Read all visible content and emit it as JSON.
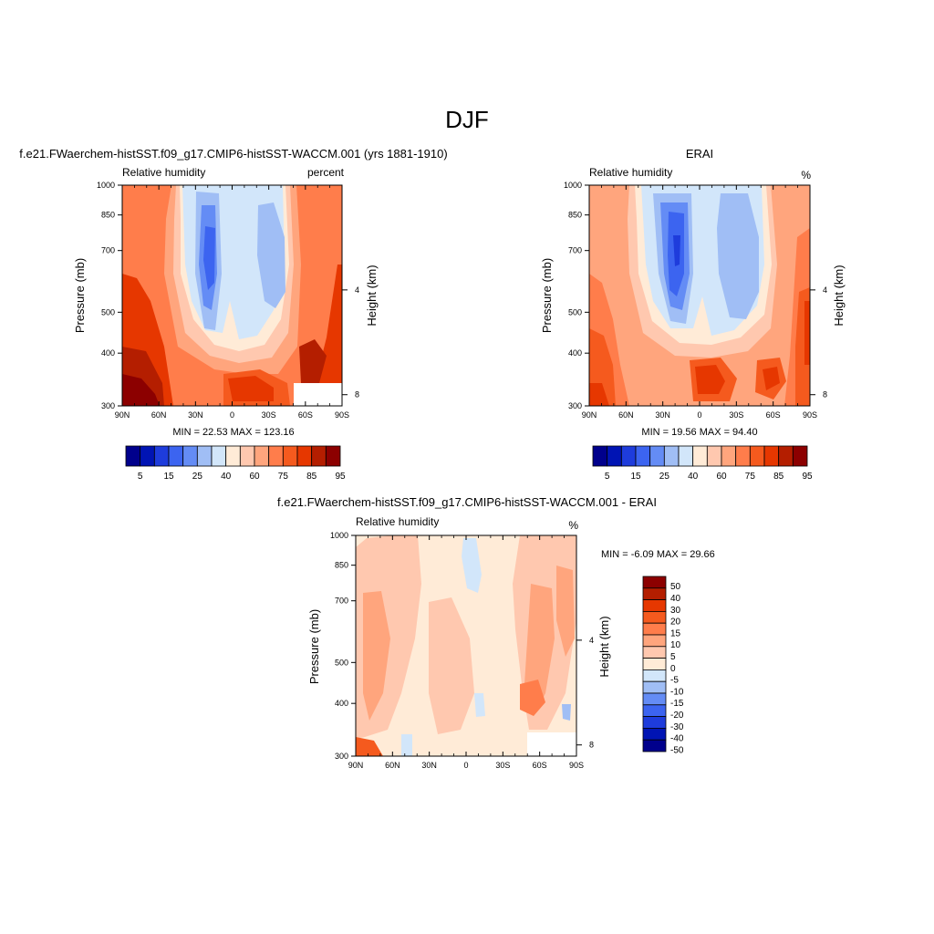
{
  "page_title": "DJF",
  "colors": {
    "model": [
      "#00008c",
      "#0014b4",
      "#1e3cdc",
      "#3c64f0",
      "#648cf5",
      "#a0bef5",
      "#d2e6fa",
      "#ffebd7",
      "#ffc8af",
      "#ffa57d",
      "#ff7d4b",
      "#f55a1e",
      "#e63700",
      "#b41e00",
      "#8c0000"
    ],
    "diff": [
      "#00008c",
      "#0014b4",
      "#1e3cdc",
      "#3c64f0",
      "#648cf5",
      "#a0bef5",
      "#d2e6fa",
      "#ffebd7",
      "#ffc8af",
      "#ffa57d",
      "#ff7d4b",
      "#f55a1e",
      "#e63700",
      "#b41e00",
      "#8c0000"
    ]
  },
  "chart_data": [
    {
      "type": "heatmap",
      "title": "f.e21.FWaerchem-histSST.f09_g17.CMIP6-histSST-WACCM.001 (yrs 1881-1910)",
      "left_label": "Relative humidity",
      "right_label": "percent",
      "ylabel": "Pressure (mb)",
      "ylabel_right": "Height (km)",
      "xticks": [
        "90N",
        "60N",
        "30N",
        "0",
        "30S",
        "60S",
        "90S"
      ],
      "yticks": [
        "300",
        "400",
        "500",
        "700",
        "850",
        "1000"
      ],
      "yticks_right": [
        "8",
        "4"
      ],
      "ylim": [
        1000,
        300
      ],
      "stats": "MIN =  22.53  MAX = 123.16",
      "colorbar_labels": [
        "5",
        "15",
        "25",
        "40",
        "60",
        "75",
        "85",
        "95"
      ]
    },
    {
      "type": "heatmap",
      "title": "ERAI",
      "left_label": "Relative humidity",
      "right_label": "%",
      "ylabel": "Pressure (mb)",
      "ylabel_right": "Height (km)",
      "xticks": [
        "90N",
        "60N",
        "30N",
        "0",
        "30S",
        "60S",
        "90S"
      ],
      "yticks": [
        "300",
        "400",
        "500",
        "700",
        "850",
        "1000"
      ],
      "yticks_right": [
        "8",
        "4"
      ],
      "ylim": [
        1000,
        300
      ],
      "stats": "MIN =  19.56  MAX =  94.40",
      "colorbar_labels": [
        "5",
        "15",
        "25",
        "40",
        "60",
        "75",
        "85",
        "95"
      ]
    },
    {
      "type": "heatmap",
      "title": "f.e21.FWaerchem-histSST.f09_g17.CMIP6-histSST-WACCM.001 - ERAI",
      "left_label": "Relative humidity",
      "right_label": "%",
      "ylabel": "Pressure (mb)",
      "ylabel_right": "Height (km)",
      "xticks": [
        "90N",
        "60N",
        "30N",
        "0",
        "30S",
        "60S",
        "90S"
      ],
      "yticks": [
        "300",
        "400",
        "500",
        "700",
        "850",
        "1000"
      ],
      "yticks_right": [
        "8",
        "4"
      ],
      "ylim": [
        1000,
        300
      ],
      "stats": "MIN =  -6.09  MAX =  29.66",
      "colorbar_labels": [
        "50",
        "40",
        "30",
        "20",
        "15",
        "10",
        "5",
        "0",
        "-5",
        "-10",
        "-15",
        "-20",
        "-30",
        "-40",
        "-50"
      ]
    }
  ]
}
